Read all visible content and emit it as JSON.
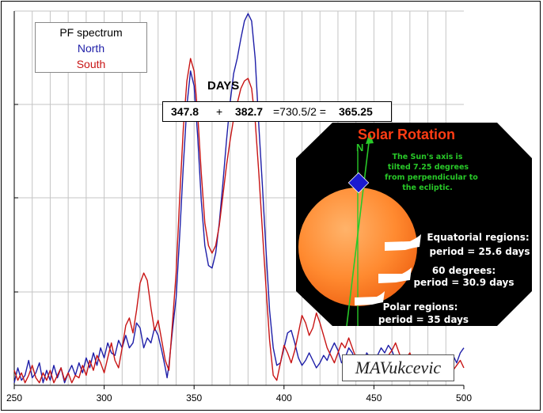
{
  "chart_data": {
    "type": "line",
    "x_range": [
      250,
      500
    ],
    "x_ticks": [
      "250",
      "300",
      "350",
      "400",
      "450",
      "500"
    ],
    "grid": true,
    "legend_placement": "top-left",
    "legend_title": "PF spectrum",
    "series": [
      {
        "name": "North",
        "color": "#1e1ea8",
        "points": [
          [
            250,
            2
          ],
          [
            252,
            14
          ],
          [
            254,
            4
          ],
          [
            256,
            8
          ],
          [
            258,
            20
          ],
          [
            260,
            6
          ],
          [
            262,
            10
          ],
          [
            264,
            18
          ],
          [
            266,
            2
          ],
          [
            268,
            12
          ],
          [
            270,
            4
          ],
          [
            272,
            16
          ],
          [
            274,
            6
          ],
          [
            276,
            14
          ],
          [
            278,
            2
          ],
          [
            280,
            10
          ],
          [
            282,
            16
          ],
          [
            284,
            8
          ],
          [
            286,
            18
          ],
          [
            288,
            10
          ],
          [
            290,
            22
          ],
          [
            292,
            14
          ],
          [
            294,
            26
          ],
          [
            296,
            16
          ],
          [
            298,
            30
          ],
          [
            300,
            22
          ],
          [
            302,
            34
          ],
          [
            304,
            26
          ],
          [
            306,
            24
          ],
          [
            308,
            36
          ],
          [
            310,
            30
          ],
          [
            312,
            40
          ],
          [
            314,
            30
          ],
          [
            316,
            34
          ],
          [
            318,
            50
          ],
          [
            320,
            46
          ],
          [
            322,
            30
          ],
          [
            324,
            38
          ],
          [
            326,
            34
          ],
          [
            328,
            46
          ],
          [
            330,
            40
          ],
          [
            332,
            28
          ],
          [
            334,
            14
          ],
          [
            335,
            6
          ],
          [
            336,
            16
          ],
          [
            338,
            44
          ],
          [
            340,
            70
          ],
          [
            342,
            120
          ],
          [
            344,
            176
          ],
          [
            346,
            224
          ],
          [
            348,
            252
          ],
          [
            350,
            240
          ],
          [
            352,
            200
          ],
          [
            354,
            148
          ],
          [
            356,
            112
          ],
          [
            358,
            96
          ],
          [
            360,
            94
          ],
          [
            362,
            106
          ],
          [
            364,
            130
          ],
          [
            366,
            162
          ],
          [
            368,
            196
          ],
          [
            370,
            226
          ],
          [
            372,
            250
          ],
          [
            374,
            262
          ],
          [
            376,
            278
          ],
          [
            378,
            292
          ],
          [
            380,
            298
          ],
          [
            382,
            292
          ],
          [
            384,
            262
          ],
          [
            386,
            208
          ],
          [
            388,
            160
          ],
          [
            390,
            108
          ],
          [
            392,
            60
          ],
          [
            394,
            30
          ],
          [
            396,
            16
          ],
          [
            398,
            18
          ],
          [
            400,
            30
          ],
          [
            402,
            42
          ],
          [
            404,
            44
          ],
          [
            406,
            34
          ],
          [
            408,
            22
          ],
          [
            410,
            16
          ],
          [
            412,
            20
          ],
          [
            414,
            26
          ],
          [
            416,
            20
          ],
          [
            418,
            14
          ],
          [
            420,
            18
          ],
          [
            422,
            24
          ],
          [
            424,
            20
          ],
          [
            426,
            28
          ],
          [
            428,
            34
          ],
          [
            430,
            28
          ],
          [
            432,
            18
          ],
          [
            434,
            22
          ],
          [
            436,
            30
          ],
          [
            438,
            26
          ],
          [
            440,
            18
          ],
          [
            442,
            12
          ],
          [
            444,
            18
          ],
          [
            446,
            26
          ],
          [
            448,
            22
          ],
          [
            450,
            18
          ],
          [
            452,
            24
          ],
          [
            454,
            30
          ],
          [
            456,
            26
          ],
          [
            458,
            32
          ],
          [
            460,
            28
          ],
          [
            462,
            20
          ],
          [
            464,
            18
          ],
          [
            466,
            14
          ],
          [
            468,
            10
          ],
          [
            470,
            16
          ],
          [
            472,
            22
          ],
          [
            474,
            16
          ],
          [
            476,
            8
          ],
          [
            478,
            14
          ],
          [
            480,
            20
          ],
          [
            482,
            12
          ],
          [
            484,
            6
          ],
          [
            486,
            4
          ],
          [
            488,
            10
          ],
          [
            490,
            14
          ],
          [
            492,
            20
          ],
          [
            494,
            24
          ],
          [
            496,
            18
          ],
          [
            498,
            26
          ],
          [
            500,
            30
          ]
        ]
      },
      {
        "name": "South",
        "color": "#c81414",
        "points": [
          [
            250,
            12
          ],
          [
            252,
            4
          ],
          [
            254,
            10
          ],
          [
            256,
            2
          ],
          [
            258,
            8
          ],
          [
            260,
            16
          ],
          [
            262,
            6
          ],
          [
            264,
            2
          ],
          [
            266,
            10
          ],
          [
            268,
            4
          ],
          [
            270,
            12
          ],
          [
            272,
            2
          ],
          [
            274,
            8
          ],
          [
            276,
            14
          ],
          [
            278,
            4
          ],
          [
            280,
            10
          ],
          [
            282,
            2
          ],
          [
            284,
            8
          ],
          [
            286,
            6
          ],
          [
            288,
            16
          ],
          [
            290,
            8
          ],
          [
            292,
            20
          ],
          [
            294,
            12
          ],
          [
            296,
            24
          ],
          [
            298,
            18
          ],
          [
            300,
            10
          ],
          [
            302,
            22
          ],
          [
            304,
            34
          ],
          [
            306,
            20
          ],
          [
            308,
            14
          ],
          [
            310,
            30
          ],
          [
            312,
            48
          ],
          [
            314,
            54
          ],
          [
            316,
            42
          ],
          [
            318,
            60
          ],
          [
            320,
            82
          ],
          [
            322,
            90
          ],
          [
            324,
            84
          ],
          [
            326,
            62
          ],
          [
            328,
            44
          ],
          [
            330,
            52
          ],
          [
            332,
            36
          ],
          [
            334,
            20
          ],
          [
            336,
            12
          ],
          [
            338,
            50
          ],
          [
            340,
            90
          ],
          [
            342,
            150
          ],
          [
            344,
            206
          ],
          [
            346,
            244
          ],
          [
            348,
            262
          ],
          [
            350,
            252
          ],
          [
            352,
            218
          ],
          [
            354,
            170
          ],
          [
            356,
            130
          ],
          [
            358,
            112
          ],
          [
            360,
            106
          ],
          [
            362,
            112
          ],
          [
            364,
            128
          ],
          [
            366,
            152
          ],
          [
            368,
            176
          ],
          [
            370,
            196
          ],
          [
            372,
            214
          ],
          [
            374,
            226
          ],
          [
            376,
            238
          ],
          [
            378,
            244
          ],
          [
            380,
            246
          ],
          [
            382,
            238
          ],
          [
            384,
            212
          ],
          [
            386,
            170
          ],
          [
            388,
            124
          ],
          [
            390,
            78
          ],
          [
            392,
            36
          ],
          [
            394,
            8
          ],
          [
            396,
            4
          ],
          [
            398,
            18
          ],
          [
            400,
            32
          ],
          [
            402,
            26
          ],
          [
            404,
            18
          ],
          [
            406,
            28
          ],
          [
            408,
            42
          ],
          [
            410,
            56
          ],
          [
            412,
            50
          ],
          [
            414,
            40
          ],
          [
            416,
            46
          ],
          [
            418,
            58
          ],
          [
            420,
            50
          ],
          [
            422,
            40
          ],
          [
            424,
            30
          ],
          [
            426,
            24
          ],
          [
            428,
            18
          ],
          [
            430,
            26
          ],
          [
            432,
            34
          ],
          [
            434,
            30
          ],
          [
            436,
            38
          ],
          [
            438,
            30
          ],
          [
            440,
            22
          ],
          [
            442,
            16
          ],
          [
            444,
            10
          ],
          [
            446,
            14
          ],
          [
            448,
            22
          ],
          [
            450,
            16
          ],
          [
            452,
            10
          ],
          [
            454,
            14
          ],
          [
            456,
            18
          ],
          [
            458,
            24
          ],
          [
            460,
            28
          ],
          [
            462,
            34
          ],
          [
            464,
            26
          ],
          [
            466,
            18
          ],
          [
            468,
            22
          ],
          [
            470,
            26
          ],
          [
            472,
            18
          ],
          [
            474,
            12
          ],
          [
            476,
            8
          ],
          [
            478,
            14
          ],
          [
            480,
            20
          ],
          [
            482,
            24
          ],
          [
            484,
            18
          ],
          [
            486,
            10
          ],
          [
            488,
            16
          ],
          [
            490,
            22
          ],
          [
            492,
            18
          ],
          [
            494,
            12
          ],
          [
            496,
            16
          ],
          [
            498,
            20
          ],
          [
            500,
            14
          ]
        ]
      }
    ]
  },
  "annotations": {
    "days_title": "DAYS",
    "equation": {
      "value_north": "347.8",
      "plus": "+",
      "value_south": "382.7",
      "middle": "=730.5/2 =",
      "result": "365.25"
    },
    "signature": "MAVukcevic"
  },
  "legend": {
    "title": "PF spectrum",
    "north": "North",
    "south": "South"
  },
  "solar_inset": {
    "title": "Solar Rotation",
    "north_label": "N",
    "axis_note": [
      "The Sun's axis is",
      "tilted 7.25 degrees",
      "from perpendicular to",
      "the ecliptic."
    ],
    "regions": [
      {
        "line1": "Equatorial regions:",
        "line2": "period = 25.6 days"
      },
      {
        "line1": "60 degrees:",
        "line2": "period = 30.9 days"
      },
      {
        "line1": "Polar regions:",
        "line2": "period = 35 days"
      }
    ],
    "colors": {
      "background": "#000000",
      "sun": "#ff8a30",
      "axis": "#28c828",
      "marker": "#1a1ad0"
    }
  }
}
